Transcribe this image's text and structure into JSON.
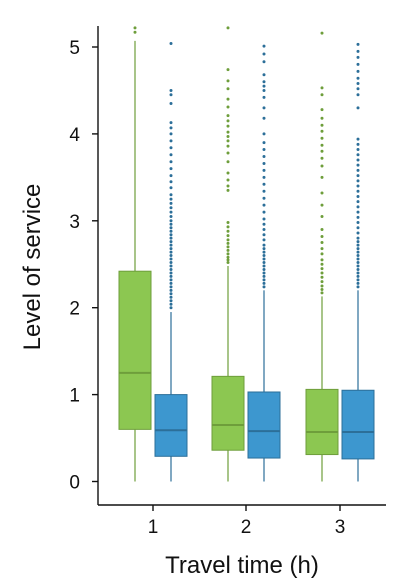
{
  "chart_data": {
    "type": "box",
    "title": "",
    "xlabel": "Travel time (h)",
    "ylabel": "Level of service",
    "categories": [
      "1",
      "2",
      "3"
    ],
    "ylim": [
      0,
      5.25
    ],
    "yticks": [
      "0",
      "1",
      "2",
      "3",
      "4",
      "5"
    ],
    "grid": false,
    "legend": "none",
    "series": [
      {
        "color": "#8cc751",
        "line_color": "#6e9e3b",
        "boxes": [
          {
            "whisker_low": 0.0,
            "q1": 0.6,
            "median": 1.25,
            "q3": 2.42,
            "whisker_high": 5.07,
            "outliers": [
              5.17,
              5.22
            ]
          },
          {
            "whisker_low": 0.0,
            "q1": 0.36,
            "median": 0.65,
            "q3": 1.21,
            "whisker_high": 2.48,
            "outliers": [
              2.52,
              2.55,
              2.58,
              2.62,
              2.66,
              2.7,
              2.74,
              2.78,
              2.83,
              2.88,
              2.93,
              2.98,
              3.35,
              3.4,
              3.47,
              3.55,
              3.68,
              3.78,
              3.86,
              3.92,
              3.97,
              4.02,
              4.09,
              4.15,
              4.21,
              4.31,
              4.4,
              4.52,
              4.61,
              4.74,
              5.22
            ]
          },
          {
            "whisker_low": 0.0,
            "q1": 0.31,
            "median": 0.57,
            "q3": 1.06,
            "whisker_high": 2.13,
            "outliers": [
              2.17,
              2.21,
              2.25,
              2.3,
              2.35,
              2.4,
              2.45,
              2.5,
              2.55,
              2.62,
              2.68,
              2.75,
              2.82,
              2.9,
              3.05,
              3.18,
              3.32,
              3.5,
              3.63,
              3.72,
              3.8,
              3.87,
              3.95,
              4.03,
              4.1,
              4.18,
              4.28,
              4.45,
              4.53,
              5.16
            ]
          }
        ]
      },
      {
        "color": "#3d97cf",
        "line_color": "#2c6f99",
        "boxes": [
          {
            "whisker_low": 0.0,
            "q1": 0.29,
            "median": 0.59,
            "q3": 1.0,
            "whisker_high": 1.95,
            "outliers": [
              2.0,
              2.04,
              2.08,
              2.12,
              2.16,
              2.2,
              2.24,
              2.28,
              2.32,
              2.36,
              2.4,
              2.44,
              2.48,
              2.52,
              2.56,
              2.6,
              2.64,
              2.68,
              2.72,
              2.76,
              2.8,
              2.84,
              2.88,
              2.92,
              2.96,
              3.0,
              3.05,
              3.1,
              3.15,
              3.2,
              3.25,
              3.3,
              3.38,
              3.45,
              3.52,
              3.6,
              3.68,
              3.76,
              3.84,
              3.92,
              4.0,
              4.07,
              4.13,
              4.35,
              4.45,
              4.5,
              5.04
            ]
          },
          {
            "whisker_low": 0.0,
            "q1": 0.27,
            "median": 0.58,
            "q3": 1.03,
            "whisker_high": 2.2,
            "outliers": [
              2.24,
              2.28,
              2.32,
              2.36,
              2.4,
              2.44,
              2.48,
              2.52,
              2.56,
              2.6,
              2.64,
              2.68,
              2.72,
              2.78,
              2.84,
              2.9,
              2.96,
              3.02,
              3.1,
              3.18,
              3.26,
              3.34,
              3.42,
              3.5,
              3.58,
              3.66,
              3.74,
              3.82,
              3.9,
              4.0,
              4.18,
              4.3,
              4.42,
              4.5,
              4.55,
              4.6,
              4.68,
              4.83,
              4.92,
              5.01
            ]
          },
          {
            "whisker_low": 0.0,
            "q1": 0.26,
            "median": 0.57,
            "q3": 1.05,
            "whisker_high": 2.2,
            "outliers": [
              2.24,
              2.28,
              2.32,
              2.36,
              2.4,
              2.44,
              2.48,
              2.52,
              2.56,
              2.6,
              2.64,
              2.68,
              2.72,
              2.76,
              2.8,
              2.86,
              2.92,
              2.98,
              3.04,
              3.1,
              3.16,
              3.22,
              3.28,
              3.34,
              3.4,
              3.46,
              3.52,
              3.58,
              3.64,
              3.7,
              3.76,
              3.82,
              3.88,
              3.94,
              4.3,
              4.45,
              4.52,
              4.58,
              4.64,
              4.72,
              4.8,
              4.88,
              4.95,
              5.03
            ]
          }
        ]
      }
    ]
  }
}
